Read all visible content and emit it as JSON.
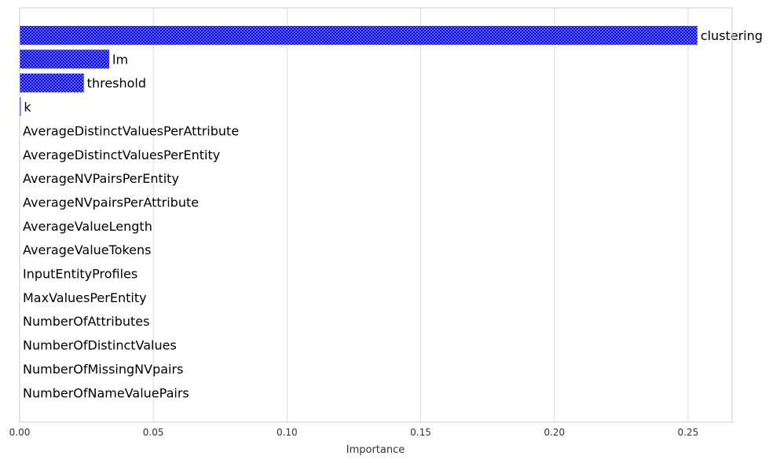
{
  "chart_data": {
    "type": "bar",
    "orientation": "horizontal",
    "xlabel": "Importance",
    "ylabel": "",
    "title": "",
    "xlim": [
      0,
      0.2665
    ],
    "xticks": [
      0.0,
      0.05,
      0.1,
      0.15,
      0.2,
      0.25
    ],
    "xtick_labels": [
      "0.00",
      "0.05",
      "0.10",
      "0.15",
      "0.20",
      "0.25"
    ],
    "grid": "vertical",
    "legend": "none",
    "bar_color": "#0000ff",
    "bar_hatch": "dots",
    "categories": [
      "clustering",
      "lm",
      "threshold",
      "k",
      "AverageDistinctValuesPerAttribute",
      "AverageDistinctValuesPerEntity",
      "AverageNVPairsPerEntity",
      "AverageNVpairsPerAttribute",
      "AverageValueLength",
      "AverageValueTokens",
      "InputEntityProfiles",
      "MaxValuesPerEntity",
      "NumberOfAttributes",
      "NumberOfDistinctValues",
      "NumberOfMissingNVpairs",
      "NumberOfNameValuePairs"
    ],
    "values": [
      0.2535,
      0.0335,
      0.024,
      0.0004,
      0,
      0,
      0,
      0,
      0,
      0,
      0,
      0,
      0,
      0,
      0,
      0
    ]
  }
}
